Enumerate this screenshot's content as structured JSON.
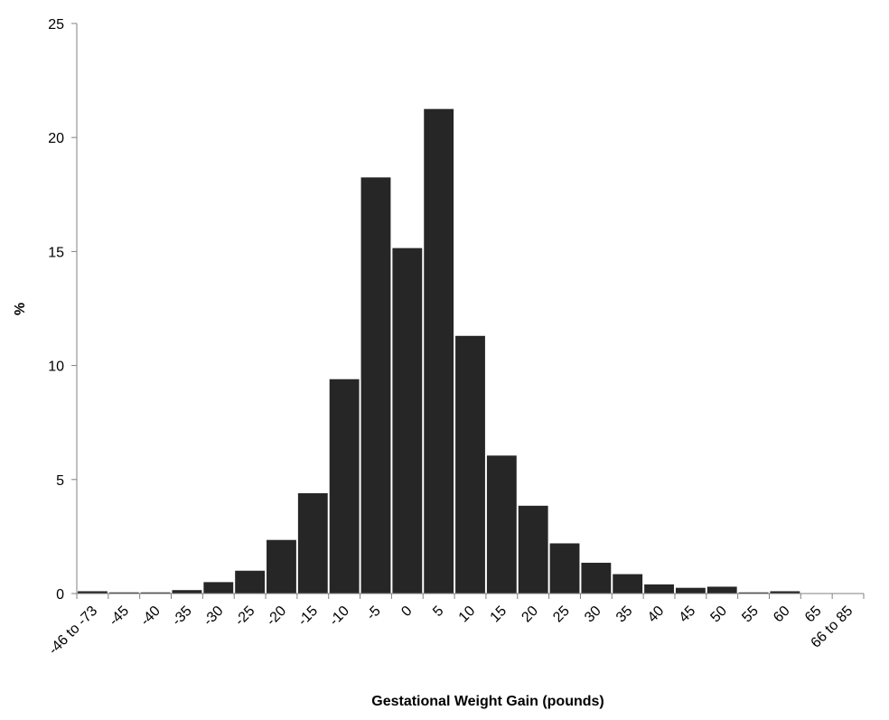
{
  "chart_data": {
    "type": "bar",
    "title": "",
    "xlabel": "Gestational Weight Gain (pounds)",
    "ylabel": "%",
    "ylim": [
      0,
      25
    ],
    "yticks": [
      0,
      5,
      10,
      15,
      20,
      25
    ],
    "grid": false,
    "legend": "none",
    "bar_color": "#262626",
    "categories": [
      "-46 to -73",
      "-45",
      "-40",
      "-35",
      "-30",
      "-25",
      "-20",
      "-15",
      "-10",
      "-5",
      "0",
      "5",
      "10",
      "15",
      "20",
      "25",
      "30",
      "35",
      "40",
      "45",
      "50",
      "55",
      "60",
      "65",
      "66 to 85"
    ],
    "values": [
      0.1,
      0.05,
      0.05,
      0.15,
      0.5,
      1.0,
      2.35,
      4.4,
      9.4,
      18.25,
      15.15,
      21.25,
      11.3,
      6.05,
      3.85,
      2.2,
      1.35,
      0.85,
      0.4,
      0.25,
      0.3,
      0.05,
      0.1,
      0.0,
      0.0
    ]
  }
}
